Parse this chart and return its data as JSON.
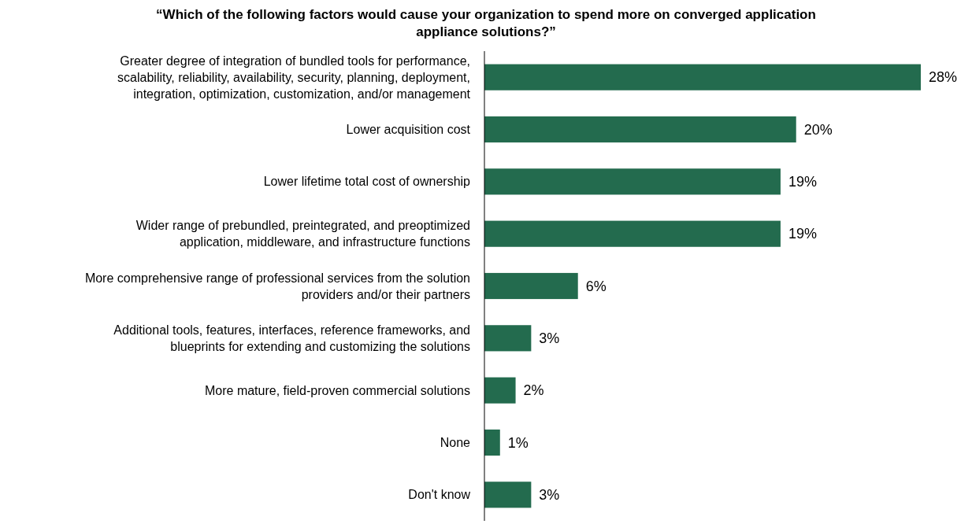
{
  "chart_data": {
    "type": "bar",
    "orientation": "horizontal",
    "title": "“Which of the following factors would cause your organization to spend more on converged application appliance solutions?”",
    "categories": [
      "Greater degree of integration of bundled tools for performance,\nscalability, reliability, availability, security, planning, deployment,\nintegration, optimization, customization, and/or management",
      "Lower acquisition cost",
      "Lower lifetime total cost of ownership",
      "Wider range of prebundled, preintegrated, and preoptimized\napplication, middleware, and infrastructure functions",
      "More comprehensive range of professional services from the solution\nproviders and/or their partners",
      "Additional tools, features, interfaces, reference frameworks, and\nblueprints for extending and customizing the solutions",
      "More mature,  field-proven commercial solutions",
      "None",
      "Don't know"
    ],
    "values": [
      28,
      20,
      19,
      19,
      6,
      3,
      2,
      1,
      3
    ],
    "value_labels": [
      "28%",
      "20%",
      "19%",
      "19%",
      "6%",
      "3%",
      "2%",
      "1%",
      "3%"
    ],
    "color": "#236b4e"
  }
}
